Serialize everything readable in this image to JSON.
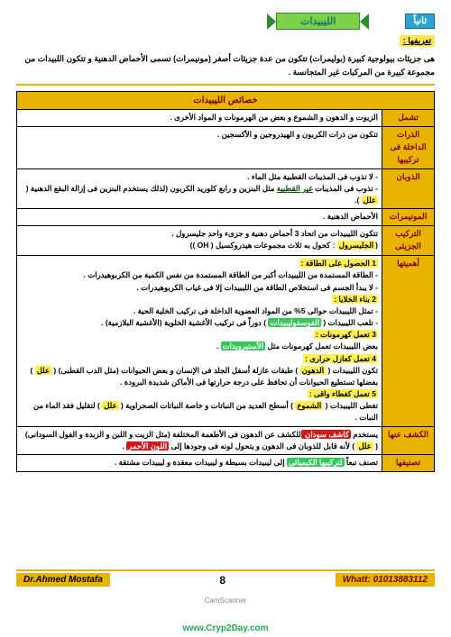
{
  "header": {
    "tab_right": "ثانياً",
    "tab_center": "الليبيدات",
    "def_label": "تعريفها :"
  },
  "intro": "هى جزيئات بيولوجية كبيرة (بوليمرات) تتكون من عدة جزيئات أصغر (مونيمرات) تسمى الأحماض الدهنية و تتكون اللبيدات من مجموعة كبيرة من المركبات غير المتجانسة .",
  "table_title": "خصائص الليبيدات",
  "rows": {
    "r1": {
      "h": "تشمل",
      "c": "الزيوت و الدهون و الشموع و بعض من الهرمونات و المواد الأخرى ."
    },
    "r2": {
      "h": "الذرات الداخلة فى تركيبها",
      "c": "تتكون من ذرات الكربون و الهيدروجين و الأكسجين ."
    },
    "r3": {
      "h": "الذوبان",
      "a": "لا تذوب فى المذيبات القطبية مثل الماء .",
      "b1": "تذوب فى المذيبات ",
      "b2": "غير القطبية",
      "b3": " مثل البنزين و رابع كلوريد الكربون (لذلك يستخدم البنزين فى إزالة البقع الدهنية ( ",
      "b4": "علل",
      "b5": " )."
    },
    "r4": {
      "h": "المونيمرات",
      "c": "الأحماض الدهنية ."
    },
    "r5": {
      "h": "التركيب الجزيئى",
      "a": "تتكون الليبيدات من اتحاد 3 أحماض دهنية و جزىء واحد جليسرول .",
      "b1": "(",
      "b2": "الجليسرول",
      "b3": " : كحول به ثلاث مجموعات هيدروكسيل ( OH ))"
    },
    "r6": {
      "h": "أهميتها",
      "s1": "1 الحصول على الطاقة :",
      "s1a": "الطاقة المستمدة من الليبيدات أكبر من الطاقة المستمدة من نفس الكمية من الكربوهيدرات .",
      "s1b": "لا يبدأ الجسم فى استخلاص الطاقة من الليبيدات إلا فى غياب الكربوهيدرات .",
      "s2": "2 بناء الخلايا :",
      "s2a": "تمثل الليبيدات حوالى 5% من المواد العضوية الداخلة فى تركيب الخلية الحية .",
      "s2b1": "تلعب الليبيدات ( ",
      "s2b2": "الفوسفوليبيدات",
      "s2b3": " ) دوراً فى تركيب الأغشية الخلوية (الأغشية البلازمية) .",
      "s3": "3 تعمل كهرمونات :",
      "s3a1": "بعض الليبيدات تعمل كهرمونات مثل ",
      "s3a2": "الأستيرويدات",
      "s3a3": " .",
      "s4": "4 تعمل كعازل حرارى :",
      "s4a1": "تكون الليبيدات ( ",
      "s4a2": "الدهون",
      "s4a3": " ) طبقات عازلة أسفل الجلد فى الإنسان و بعض الحيوانات (مثل الدب القطبى) ( ",
      "s4a4": "علل",
      "s4a5": " ) بفضلها تستطيع الحيوانات أن تحافظ على درجة حرارتها فى الأماكن شديدة البرودة .",
      "s5": "5 تعمل كغطاء واقى :",
      "s5a1": "تغطى الليبيدات ( ",
      "s5a2": "الشموع",
      "s5a3": " ) أسطح العديد من النباتات و خاصة النباتات الصحراوية ( ",
      "s5a4": "علل",
      "s5a5": " ) لتقليل فقد الماء من النبات ."
    },
    "r7": {
      "h": "الكشف عنها",
      "a1": "يستخدم ",
      "a2": "كاشف سودان ",
      "a3": " للكشف عن الدهون فى الأطعمة المختلفة (مثل الزيت و اللبن و الزبدة و الفول السودانى) ( ",
      "a4": "علل",
      "a5": " ) لأنه قابل للذوبان فى الدهون و يتحول لونه فى وجودها إلى ",
      "a6": "اللون الأحمر",
      "a7": " ."
    },
    "r8": {
      "h": "تصنيفها",
      "a1": "تصنف تبعاً ",
      "a2": "لتركيبها الكيميائى",
      "a3": " إلى ليبيدات بسيطة و ليبيدات معقدة و ليبيدات مشتقة ."
    }
  },
  "footer": {
    "left": "Whatt: 01013883112",
    "page": "8",
    "right": "Dr.Ahmed Mostafa",
    "scan": "CamScanner",
    "logo": "www.Cryp2Day.com"
  }
}
